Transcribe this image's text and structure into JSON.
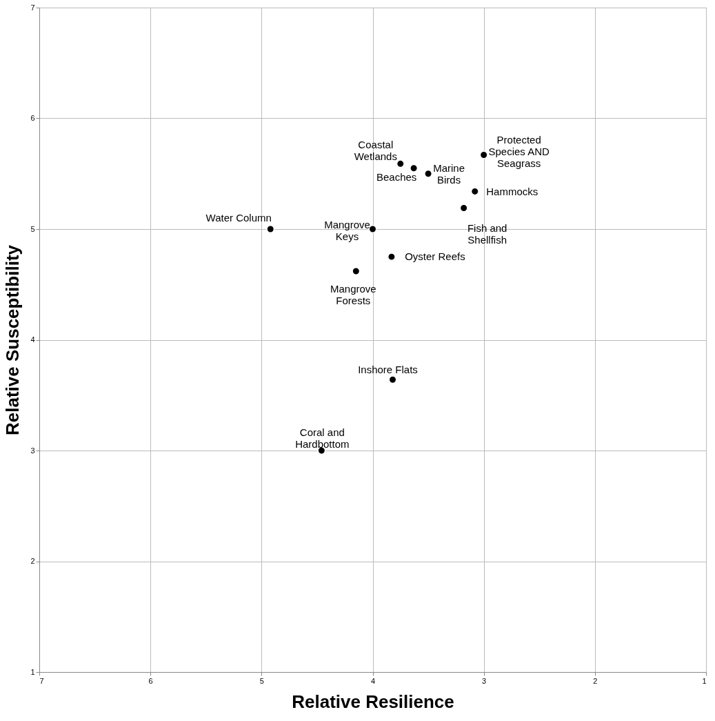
{
  "chart_data": {
    "type": "scatter",
    "xlabel": "Relative Resilience",
    "ylabel": "Relative Susceptibility",
    "x": [
      4.92,
      4.0,
      3.83,
      4.15,
      3.82,
      4.46,
      3.75,
      3.63,
      3.5,
      3.0,
      3.08,
      3.18
    ],
    "values": [
      5.0,
      5.0,
      4.75,
      4.62,
      3.64,
      3.0,
      5.59,
      5.55,
      5.5,
      5.67,
      5.34,
      5.19
    ],
    "color": "#000000",
    "marker": "circle",
    "xlim": [
      7,
      1
    ],
    "ylim": [
      1,
      7
    ],
    "xticks": [
      7,
      6,
      5,
      4,
      3,
      2,
      1
    ],
    "yticks": [
      1,
      2,
      3,
      4,
      5,
      6,
      7
    ],
    "grid": true,
    "annotations": [
      {
        "text": "Water Column",
        "x": 4.92,
        "y": 5.0
      },
      {
        "text": "Mangrove\nKeys",
        "x": 4.0,
        "y": 5.0
      },
      {
        "text": "Oyster Reefs",
        "x": 3.83,
        "y": 4.75
      },
      {
        "text": "Mangrove\nForests",
        "x": 4.15,
        "y": 4.62
      },
      {
        "text": "Inshore Flats",
        "x": 3.82,
        "y": 3.64
      },
      {
        "text": "Coral and\nHardbottom",
        "x": 4.46,
        "y": 3.0
      },
      {
        "text": "Coastal\nWetlands",
        "x": 3.75,
        "y": 5.59
      },
      {
        "text": "Beaches",
        "x": 3.63,
        "y": 5.55
      },
      {
        "text": "Marine\nBirds",
        "x": 3.5,
        "y": 5.5
      },
      {
        "text": "Protected\nSpecies AND\nSeagrass",
        "x": 3.0,
        "y": 5.67
      },
      {
        "text": "Hammocks",
        "x": 3.08,
        "y": 5.34
      },
      {
        "text": "Fish and\nShellfish",
        "x": 3.18,
        "y": 5.19
      }
    ]
  }
}
